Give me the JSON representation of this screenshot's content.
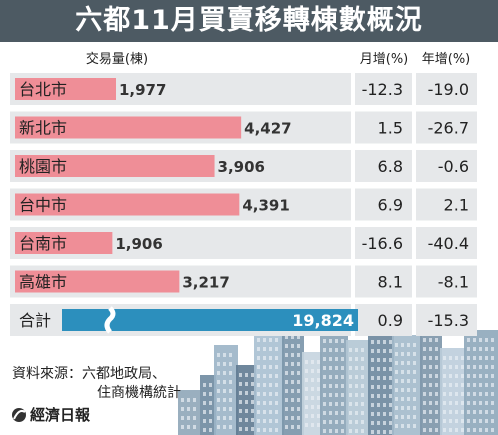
{
  "title": "六都11月買賣移轉棟數概況",
  "columns": {
    "volume": "交易量(棟)",
    "mom": "月增(%)",
    "yoy": "年增(%)"
  },
  "chart_data": {
    "type": "bar",
    "categories": [
      "台北市",
      "新北市",
      "桃園市",
      "台中市",
      "台南市",
      "高雄市"
    ],
    "values": [
      1977,
      4427,
      3906,
      4391,
      1906,
      3217
    ],
    "value_labels": [
      "1,977",
      "4,427",
      "3,906",
      "4,391",
      "1,906",
      "3,217"
    ],
    "monthly_change": [
      "-12.3",
      "1.5",
      "6.8",
      "6.9",
      "-16.6",
      "8.1"
    ],
    "yearly_change": [
      "-19.0",
      "-26.7",
      "-0.6",
      "2.1",
      "-40.4",
      "-8.1"
    ],
    "total": {
      "label": "合計",
      "value": 19824,
      "value_label": "19,824",
      "monthly_change": "0.9",
      "yearly_change": "-15.3"
    },
    "xlim": [
      0,
      4600
    ],
    "grid": false,
    "bar_color": "#ef8e97",
    "total_bar_color": "#2c8fbd"
  },
  "source_lines": [
    "資料來源：六都地政局、",
    "住商機構統計"
  ],
  "brand": "經濟日報",
  "colors": {
    "title_bg": "#4d5a63",
    "row_bg": "#e6e8ea",
    "text": "#222222"
  }
}
